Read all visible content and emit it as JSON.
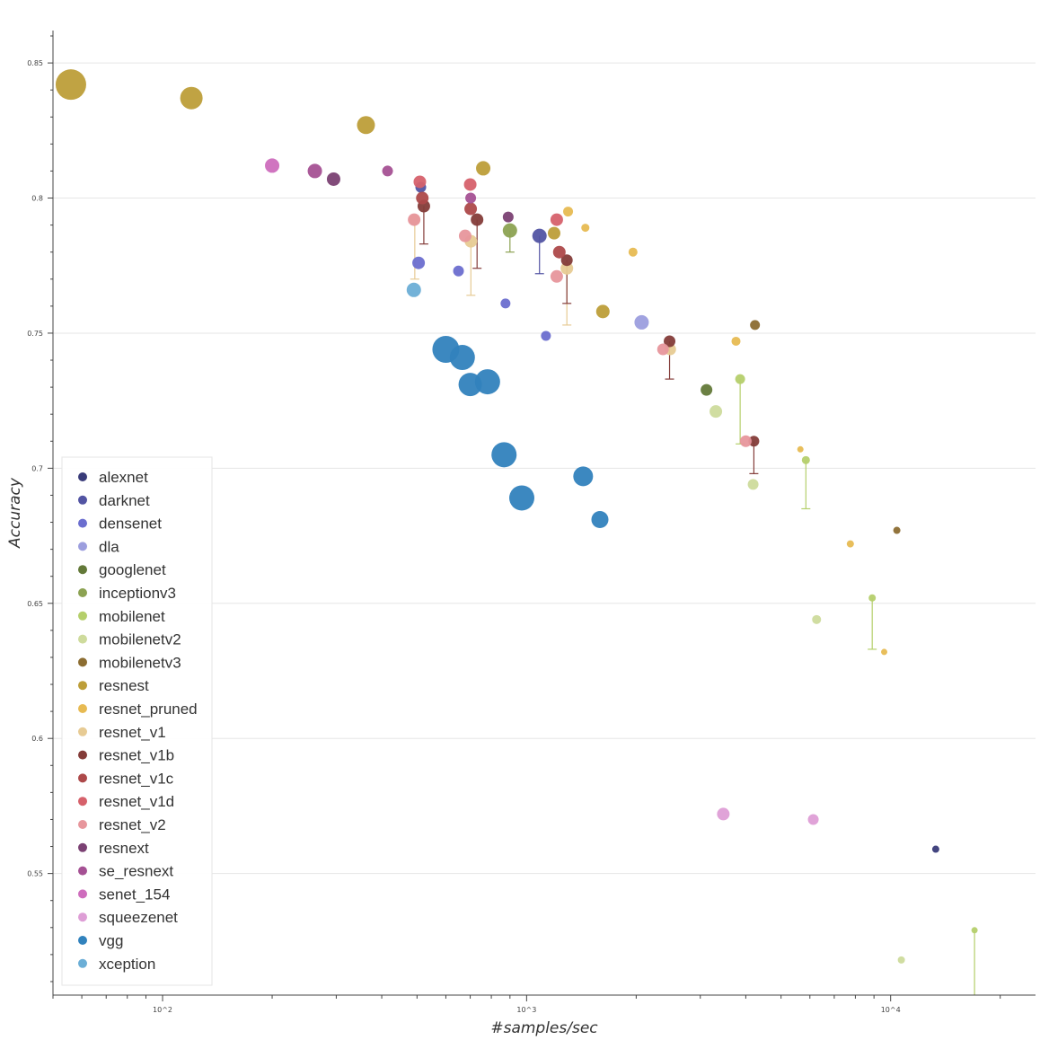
{
  "chart_data": {
    "type": "scatter",
    "title": "",
    "xlabel": "#samples/sec",
    "ylabel": "Accuracy",
    "xscale": "log",
    "xlim": [
      50,
      25000
    ],
    "ylim": [
      0.505,
      0.862
    ],
    "grid": "horizontal",
    "legend_position": "bottom-left",
    "x_ticks": [
      {
        "value": 100,
        "label": "10^2"
      },
      {
        "value": 1000,
        "label": "10^3"
      },
      {
        "value": 10000,
        "label": "10^4"
      }
    ],
    "y_ticks": [
      {
        "value": 0.55,
        "label": "0.55"
      },
      {
        "value": 0.6,
        "label": "0.6"
      },
      {
        "value": 0.65,
        "label": "0.65"
      },
      {
        "value": 0.7,
        "label": "0.7"
      },
      {
        "value": 0.75,
        "label": "0.75"
      },
      {
        "value": 0.8,
        "label": "0.8"
      },
      {
        "value": 0.85,
        "label": "0.85"
      }
    ],
    "series": [
      {
        "name": "alexnet",
        "color": "#393b79",
        "points": [
          {
            "x": 13300,
            "y": 0.559,
            "size": 4
          }
        ]
      },
      {
        "name": "darknet",
        "color": "#5254a3",
        "points": [
          {
            "x": 512,
            "y": 0.804,
            "size": 6
          },
          {
            "x": 1085,
            "y": 0.786,
            "size": 8,
            "err": 0.014
          }
        ]
      },
      {
        "name": "densenet",
        "color": "#6b6ecf",
        "points": [
          {
            "x": 505,
            "y": 0.776,
            "size": 7
          },
          {
            "x": 650,
            "y": 0.773,
            "size": 6
          },
          {
            "x": 875,
            "y": 0.761,
            "size": 5.5
          },
          {
            "x": 1130,
            "y": 0.749,
            "size": 5.5
          }
        ]
      },
      {
        "name": "dla",
        "color": "#9c9ede",
        "points": [
          {
            "x": 2070,
            "y": 0.754,
            "size": 8
          }
        ]
      },
      {
        "name": "googlenet",
        "color": "#637939",
        "points": [
          {
            "x": 3120,
            "y": 0.729,
            "size": 6.5
          }
        ]
      },
      {
        "name": "inceptionv3",
        "color": "#8ca252",
        "points": [
          {
            "x": 900,
            "y": 0.788,
            "size": 8,
            "err": 0.008
          }
        ]
      },
      {
        "name": "mobilenet",
        "color": "#b5cf6b",
        "points": [
          {
            "x": 3860,
            "y": 0.733,
            "size": 5.5,
            "err": 0.024
          },
          {
            "x": 5850,
            "y": 0.703,
            "size": 4.5,
            "err": 0.018
          },
          {
            "x": 8900,
            "y": 0.652,
            "size": 4,
            "err": 0.019
          },
          {
            "x": 17000,
            "y": 0.529,
            "size": 3.5,
            "err": 0.03
          }
        ]
      },
      {
        "name": "mobilenetv2",
        "color": "#cedb9c",
        "points": [
          {
            "x": 3310,
            "y": 0.721,
            "size": 7
          },
          {
            "x": 4190,
            "y": 0.694,
            "size": 6
          },
          {
            "x": 6260,
            "y": 0.644,
            "size": 5
          },
          {
            "x": 10700,
            "y": 0.518,
            "size": 4
          }
        ]
      },
      {
        "name": "mobilenetv3",
        "color": "#8c6d31",
        "points": [
          {
            "x": 4240,
            "y": 0.753,
            "size": 5.5
          },
          {
            "x": 10400,
            "y": 0.677,
            "size": 4
          }
        ]
      },
      {
        "name": "resnest",
        "color": "#bd9e39",
        "points": [
          {
            "x": 56,
            "y": 0.842,
            "size": 17
          },
          {
            "x": 120,
            "y": 0.837,
            "size": 12.5
          },
          {
            "x": 362,
            "y": 0.827,
            "size": 10
          },
          {
            "x": 760,
            "y": 0.811,
            "size": 8
          },
          {
            "x": 1190,
            "y": 0.787,
            "size": 7
          },
          {
            "x": 1620,
            "y": 0.758,
            "size": 7.5
          }
        ]
      },
      {
        "name": "resnet_pruned",
        "color": "#e7ba52",
        "points": [
          {
            "x": 1300,
            "y": 0.795,
            "size": 5.5
          },
          {
            "x": 1450,
            "y": 0.789,
            "size": 4.5
          },
          {
            "x": 1960,
            "y": 0.78,
            "size": 5
          },
          {
            "x": 3760,
            "y": 0.747,
            "size": 5
          },
          {
            "x": 5650,
            "y": 0.707,
            "size": 3.5
          },
          {
            "x": 7750,
            "y": 0.672,
            "size": 4
          },
          {
            "x": 9600,
            "y": 0.632,
            "size": 3.5
          }
        ]
      },
      {
        "name": "resnet_v1",
        "color": "#e7cb94",
        "points": [
          {
            "x": 493,
            "y": 0.792,
            "size": 6,
            "err": 0.022
          },
          {
            "x": 703,
            "y": 0.784,
            "size": 7,
            "err": 0.02
          },
          {
            "x": 1290,
            "y": 0.774,
            "size": 7,
            "err": 0.021
          },
          {
            "x": 2480,
            "y": 0.744,
            "size": 6.5
          }
        ]
      },
      {
        "name": "resnet_v1b",
        "color": "#843c39",
        "points": [
          {
            "x": 522,
            "y": 0.797,
            "size": 7,
            "err": 0.014
          },
          {
            "x": 731,
            "y": 0.792,
            "size": 7,
            "err": 0.018
          },
          {
            "x": 1290,
            "y": 0.777,
            "size": 6.5,
            "err": 0.016
          },
          {
            "x": 2470,
            "y": 0.747,
            "size": 6.5,
            "err": 0.014
          },
          {
            "x": 4210,
            "y": 0.71,
            "size": 6,
            "err": 0.012
          }
        ]
      },
      {
        "name": "resnet_v1c",
        "color": "#ad494a",
        "points": [
          {
            "x": 517,
            "y": 0.8,
            "size": 7
          },
          {
            "x": 702,
            "y": 0.796,
            "size": 7
          },
          {
            "x": 1230,
            "y": 0.78,
            "size": 7
          }
        ]
      },
      {
        "name": "resnet_v1d",
        "color": "#d6616b",
        "points": [
          {
            "x": 509,
            "y": 0.806,
            "size": 7
          },
          {
            "x": 700,
            "y": 0.805,
            "size": 7
          },
          {
            "x": 1210,
            "y": 0.792,
            "size": 7
          }
        ]
      },
      {
        "name": "resnet_v2",
        "color": "#e7969c",
        "points": [
          {
            "x": 491,
            "y": 0.792,
            "size": 7
          },
          {
            "x": 678,
            "y": 0.786,
            "size": 7
          },
          {
            "x": 1210,
            "y": 0.771,
            "size": 7
          },
          {
            "x": 2370,
            "y": 0.744,
            "size": 6.5
          },
          {
            "x": 4000,
            "y": 0.71,
            "size": 6.5
          }
        ]
      },
      {
        "name": "resnext",
        "color": "#7b4173",
        "points": [
          {
            "x": 295,
            "y": 0.807,
            "size": 7.5
          },
          {
            "x": 890,
            "y": 0.793,
            "size": 6
          }
        ]
      },
      {
        "name": "se_resnext",
        "color": "#a55194",
        "points": [
          {
            "x": 262,
            "y": 0.81,
            "size": 8
          },
          {
            "x": 415,
            "y": 0.81,
            "size": 6
          },
          {
            "x": 702,
            "y": 0.8,
            "size": 6
          }
        ]
      },
      {
        "name": "senet_154",
        "color": "#ce6dbd",
        "points": [
          {
            "x": 200,
            "y": 0.812,
            "size": 8
          }
        ]
      },
      {
        "name": "squeezenet",
        "color": "#de9ed6",
        "points": [
          {
            "x": 3470,
            "y": 0.572,
            "size": 7
          },
          {
            "x": 6130,
            "y": 0.57,
            "size": 6
          }
        ]
      },
      {
        "name": "vgg",
        "color": "#3182bd",
        "points": [
          {
            "x": 600,
            "y": 0.744,
            "size": 15
          },
          {
            "x": 666,
            "y": 0.741,
            "size": 14
          },
          {
            "x": 700,
            "y": 0.731,
            "size": 13
          },
          {
            "x": 781,
            "y": 0.732,
            "size": 14
          },
          {
            "x": 867,
            "y": 0.705,
            "size": 14
          },
          {
            "x": 970,
            "y": 0.689,
            "size": 14
          },
          {
            "x": 1430,
            "y": 0.697,
            "size": 11
          },
          {
            "x": 1590,
            "y": 0.681,
            "size": 9.5
          }
        ]
      },
      {
        "name": "xception",
        "color": "#6baed6",
        "points": [
          {
            "x": 490,
            "y": 0.766,
            "size": 8
          }
        ]
      }
    ]
  }
}
